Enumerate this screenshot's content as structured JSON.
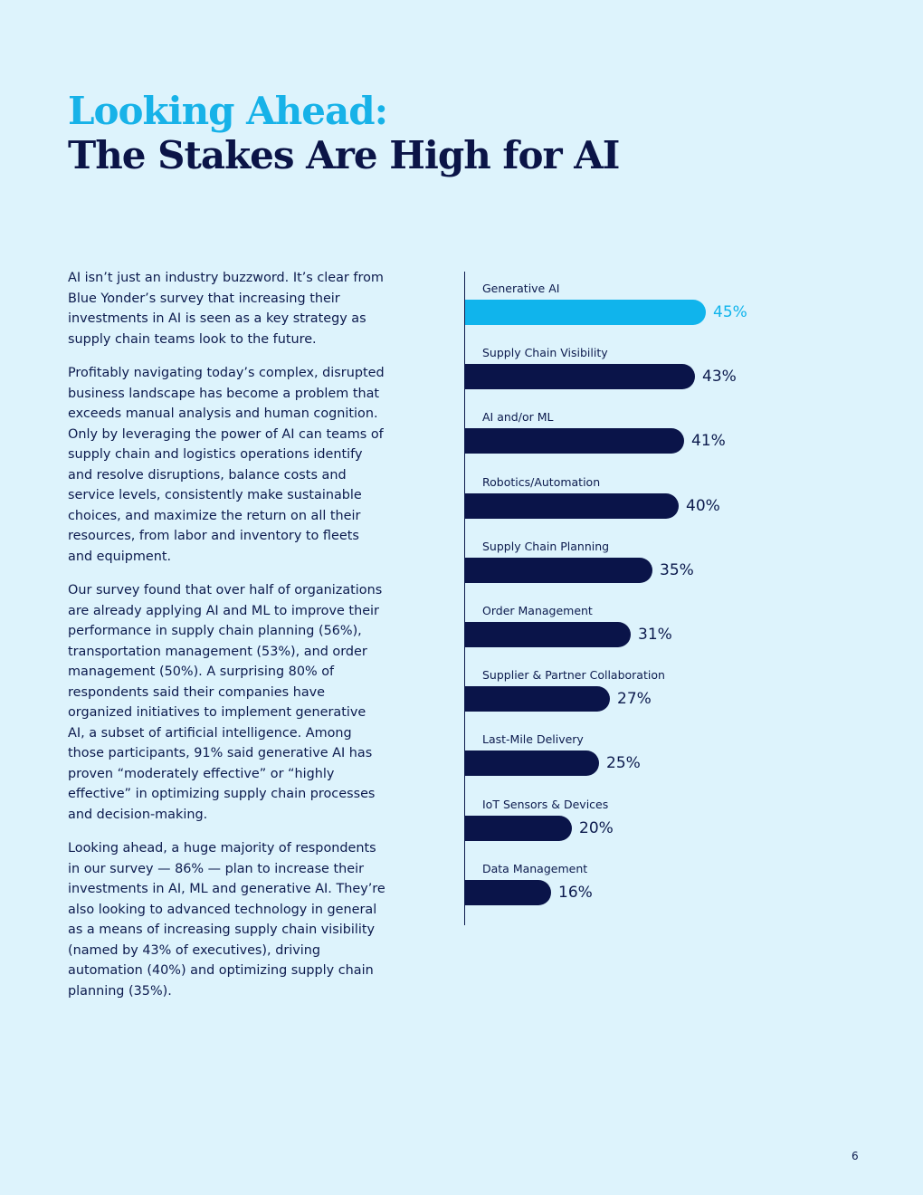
{
  "header": {
    "title_line1": "Looking Ahead:",
    "title_line2": "The Stakes Are High for AI"
  },
  "body": {
    "paragraphs": [
      "AI isn’t just an industry buzzword. It’s clear from Blue Yonder’s survey that increasing their investments in AI is seen as a key strategy as supply chain teams look to the future.",
      "Profitably navigating today’s complex, disrupted business landscape has become a problem that exceeds manual analysis and human cognition. Only by leveraging the power of AI can teams of supply chain and logistics operations identify and resolve disruptions, balance costs and service levels, consistently make sustainable choices, and maximize the return on all their resources, from labor and inventory to fleets and equipment.",
      "Our survey found that over half of organizations are already applying AI and ML to improve their performance in supply chain planning (56%), transportation management (53%), and order management (50%). A surprising 80% of respondents said their companies have organized initiatives to implement generative AI, a subset of artificial intelligence. Among those participants, 91% said generative AI has proven “moderately effective” or “highly effective” in optimizing supply chain processes and decision-making.",
      "Looking ahead, a huge majority of respondents in our survey — 86% — plan to increase their investments in AI, ML and generative AI. They’re also looking to advanced technology in general as a means of increasing supply chain visibility (named by 43% of executives), driving automation (40%) and optimizing supply chain planning (35%)."
    ]
  },
  "chart_data": {
    "type": "bar",
    "orientation": "horizontal",
    "categories": [
      "Generative AI",
      "Supply Chain Visibility",
      "AI and/or ML",
      "Robotics/Automation",
      "Supply Chain Planning",
      "Order Management",
      "Supplier & Partner Collaboration",
      "Last-Mile Delivery",
      "IoT Sensors & Devices",
      "Data Management"
    ],
    "values": [
      45,
      43,
      41,
      40,
      35,
      31,
      27,
      25,
      20,
      16
    ],
    "value_labels": [
      "45%",
      "43%",
      "41%",
      "40%",
      "35%",
      "31%",
      "27%",
      "25%",
      "20%",
      "16%"
    ],
    "unit": "%",
    "highlight_index": 0,
    "colors": {
      "highlight": "#10b4ec",
      "default": "#0a1449"
    },
    "title": "",
    "xlabel": "",
    "ylabel": "",
    "xlim": [
      0,
      45
    ]
  },
  "footer": {
    "page_number": "6"
  }
}
